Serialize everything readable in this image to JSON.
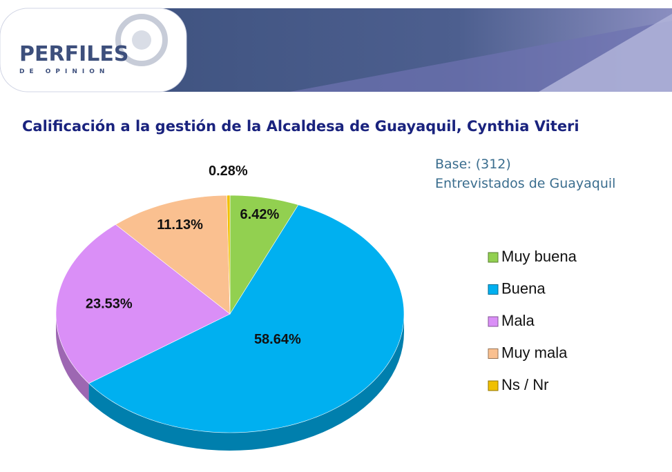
{
  "brand": {
    "name": "PERFILES",
    "tagline": "DE OPINION"
  },
  "chart_data": {
    "type": "pie",
    "title": "Calificación a la gestión de la Alcaldesa de Guayaquil, Cynthia Viteri",
    "subtitle": [
      "Base: (312)",
      "Entrevistados de Guayaquil"
    ],
    "categories": [
      "Muy buena",
      "Buena",
      "Mala",
      "Muy mala",
      "Ns / Nr"
    ],
    "values": [
      6.42,
      58.64,
      23.53,
      11.13,
      0.28
    ],
    "value_labels": [
      "6.42%",
      "58.64%",
      "23.53%",
      "11.13%",
      "0.28%"
    ],
    "colors": [
      "#92d050",
      "#00b0f0",
      "#da8ff7",
      "#fac090",
      "#f0c000"
    ],
    "legend": "right"
  }
}
